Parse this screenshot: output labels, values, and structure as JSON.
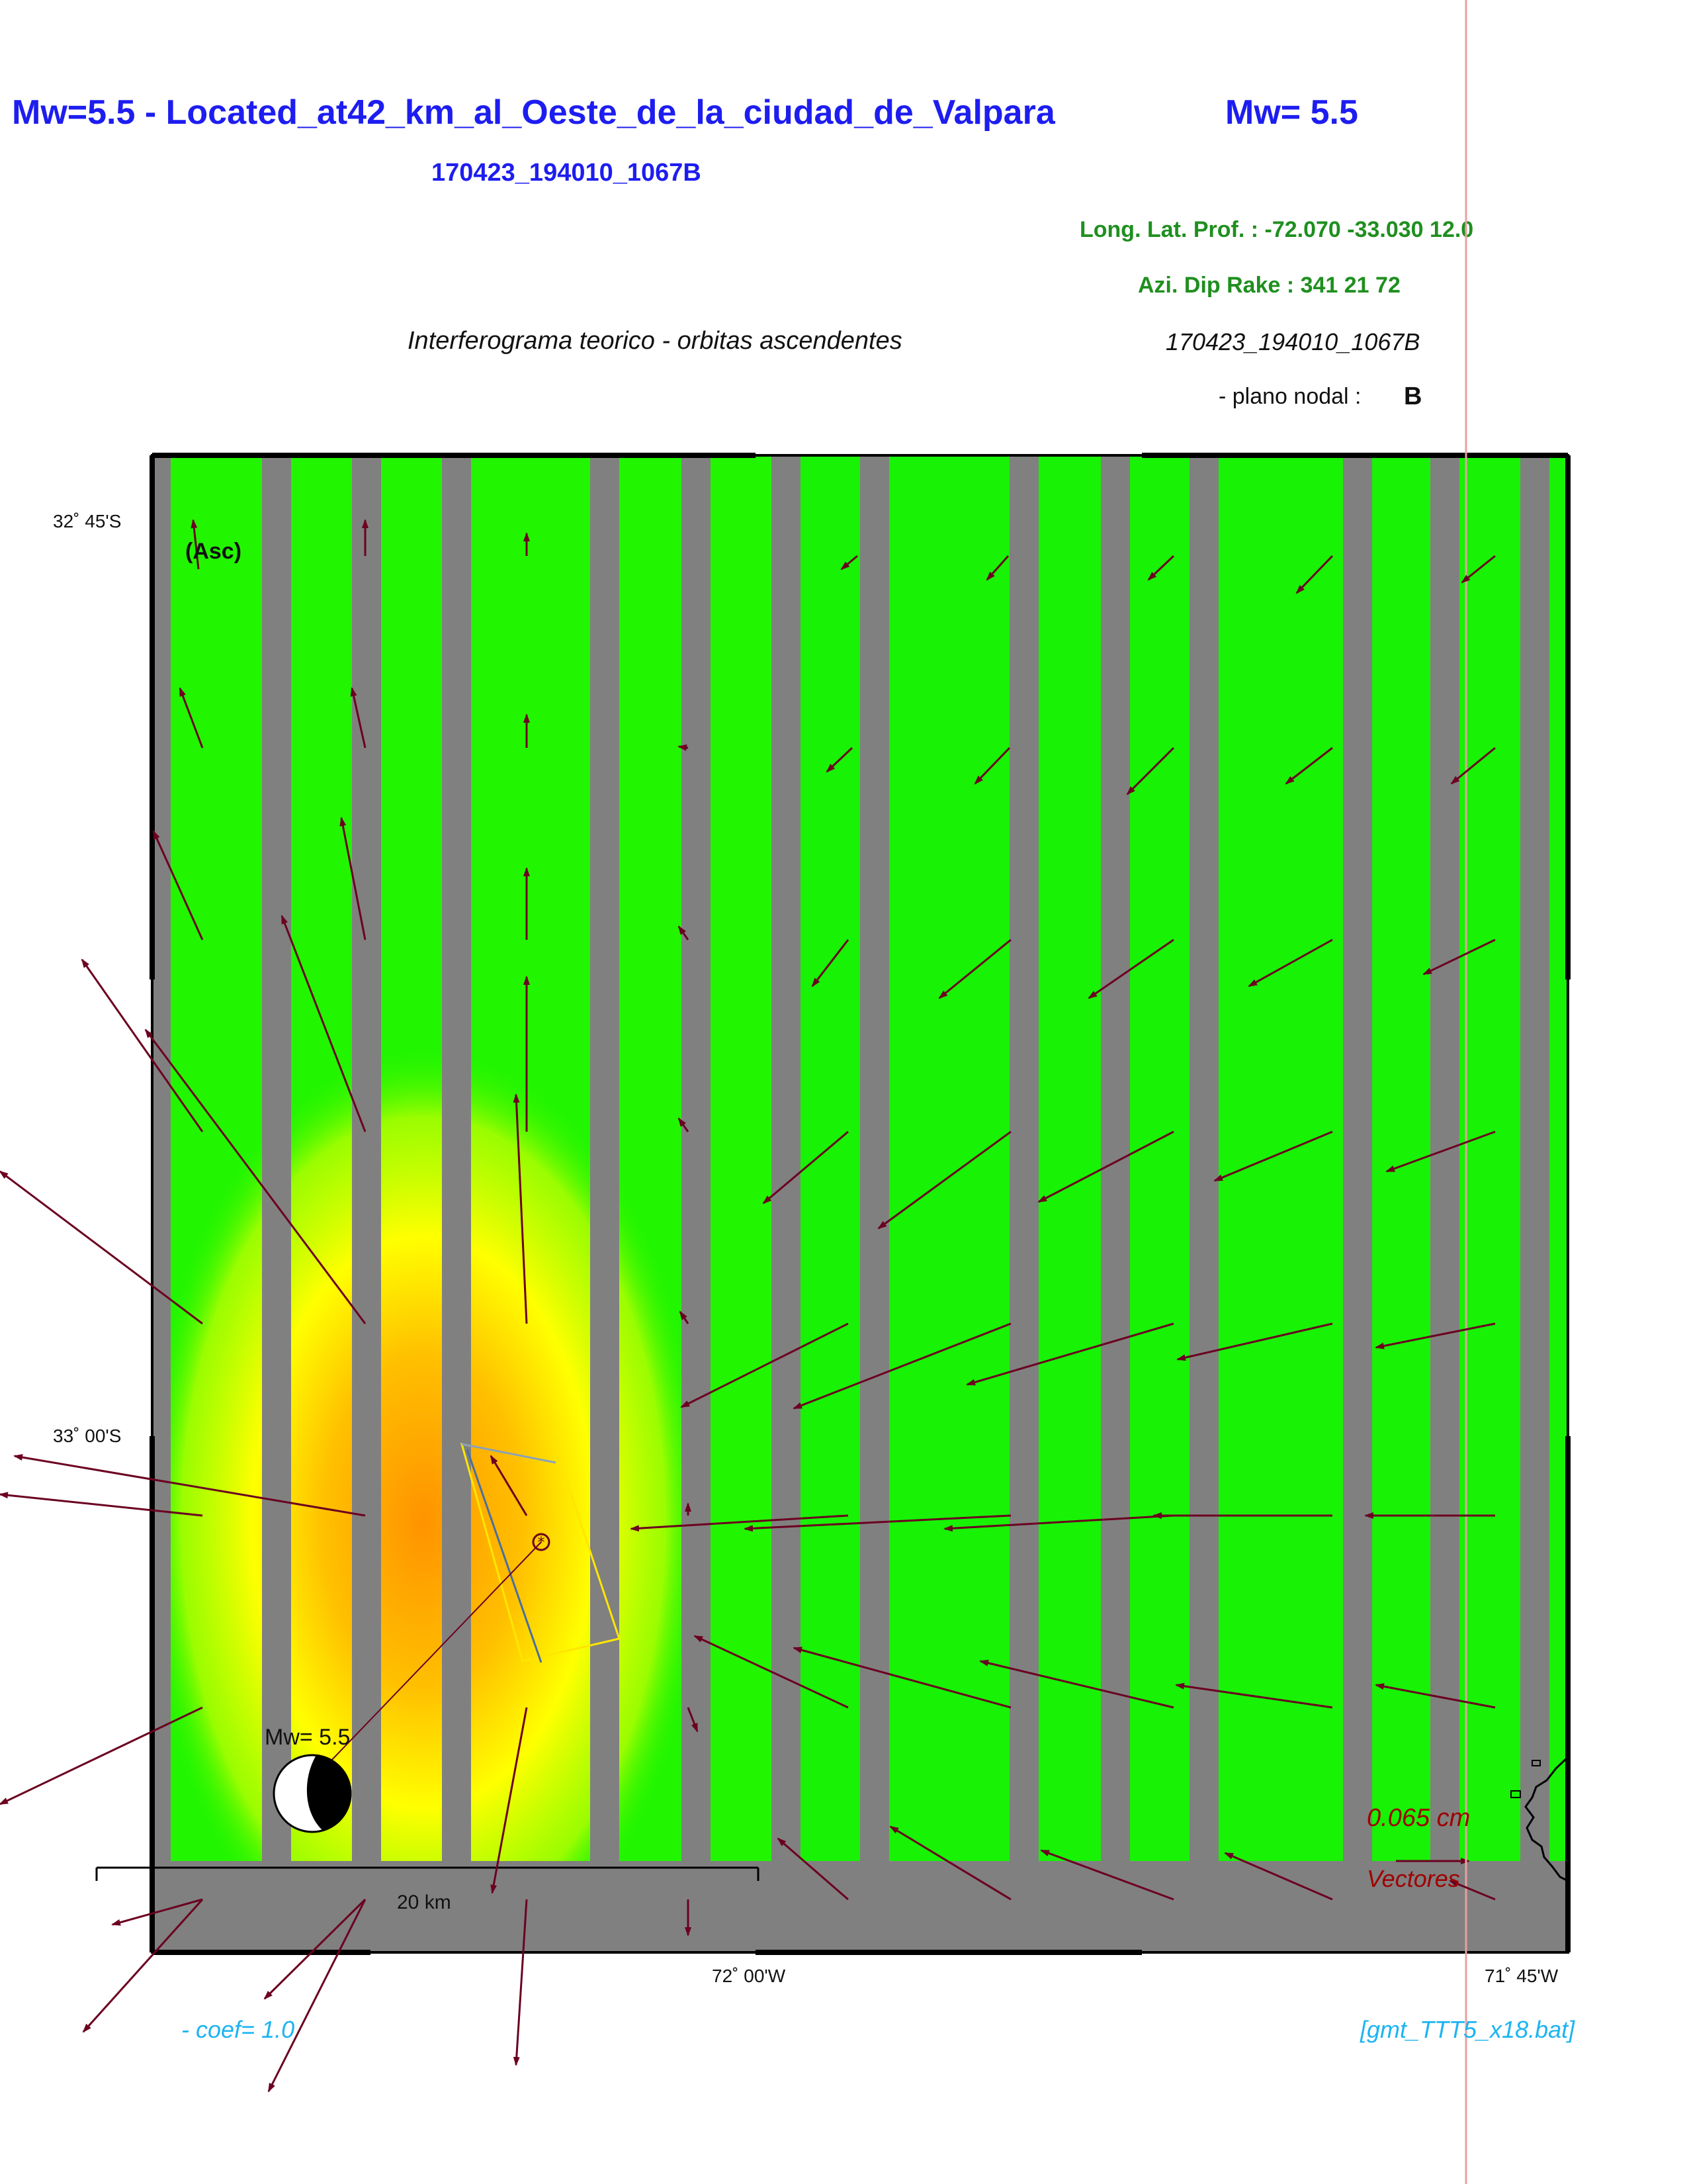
{
  "header": {
    "title": "Mw=5.5 - Located_at42_km_al_Oeste_de_la_ciudad_de_Valpara",
    "title_mag": "Mw= 5.5",
    "event_id": "170423_194010_1067B",
    "hypocenter": "Long. Lat. Prof. : -72.070 -33.030 12.0",
    "mechanism": "Azi.  Dip   Rake :  341 21 72",
    "interferogram_label": "Interferograma teorico - orbitas ascendentes",
    "event_id_right": "170423_194010_1067B",
    "nodal_plane_label": "- plano nodal :",
    "nodal_plane_value": "B"
  },
  "map": {
    "orbit_label": "(Asc)",
    "lat_ticks": [
      "32˚ 45'S",
      "33˚ 00'S"
    ],
    "lon_ticks": [
      "72˚ 00'W",
      "71˚ 45'W"
    ],
    "scale_bar_label": "20 km",
    "beachball_label": "Mw= 5.5",
    "vector_magnitude": "0.065  cm",
    "vector_label": "Vectores",
    "colors": {
      "background_green": "#22f500",
      "gap_gray": "#808080",
      "max_orange": "#ff9300",
      "mid_yellow": "#ffff00",
      "vector": "#6b0020",
      "fault_outline": "#ffe600"
    }
  },
  "footer": {
    "coef": "- coef=  1.0",
    "script_name": "[gmt_TTT5_x18.bat]"
  }
}
